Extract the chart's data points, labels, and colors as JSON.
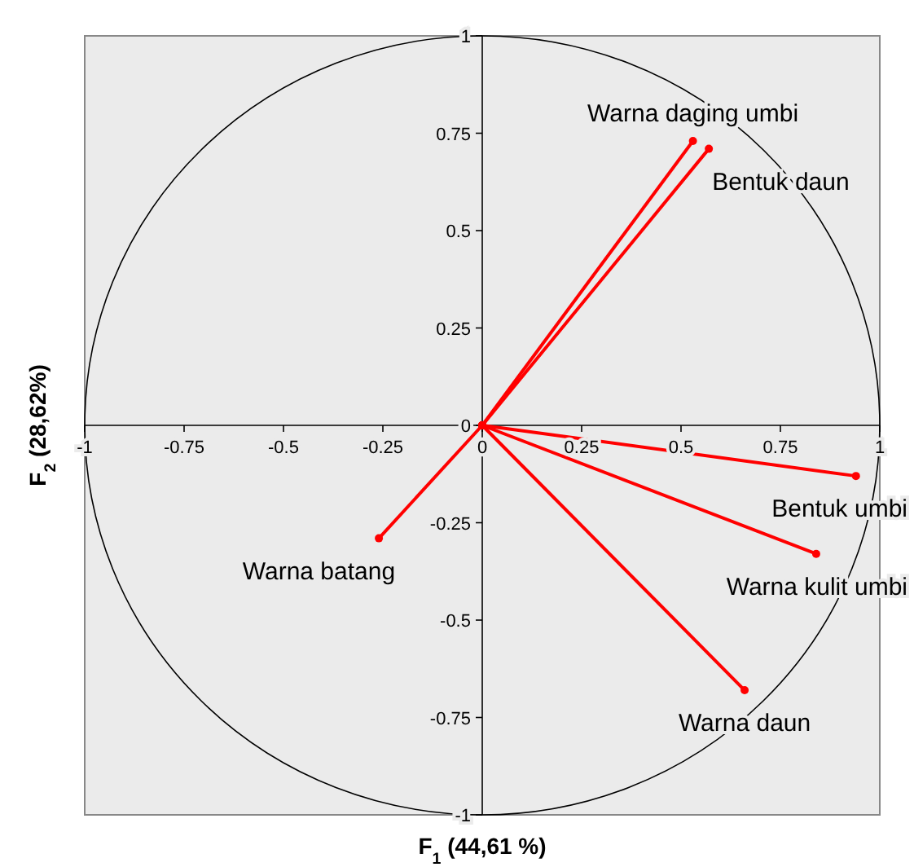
{
  "chart_data": {
    "type": "line",
    "xlabel": "F$_{1}$ (44,61 %)",
    "ylabel": "F$_{2}$ (28,62%)",
    "xlim": [
      -1,
      1
    ],
    "ylim": [
      -1,
      1
    ],
    "xticks": [
      -1,
      -0.75,
      -0.5,
      -0.25,
      0,
      0.25,
      0.5,
      0.75,
      1
    ],
    "yticks": [
      -1,
      -0.75,
      -0.5,
      -0.25,
      0,
      0.25,
      0.5,
      0.75,
      1
    ],
    "marker": "circle",
    "grid": false,
    "series": [
      {
        "name": "Warna daging umbi",
        "color": "#ff0000",
        "x": [
          0,
          0.53
        ],
        "values": [
          0,
          0.73
        ]
      },
      {
        "name": "Bentuk daun",
        "color": "#ff0000",
        "x": [
          0,
          0.57
        ],
        "values": [
          0,
          0.71
        ]
      },
      {
        "name": "Bentuk umbi",
        "color": "#ff0000",
        "x": [
          0,
          0.94
        ],
        "values": [
          0,
          -0.13
        ]
      },
      {
        "name": "Warna kulit umbi",
        "color": "#ff0000",
        "x": [
          0,
          0.84
        ],
        "values": [
          0,
          -0.33
        ]
      },
      {
        "name": "Warna daun",
        "color": "#ff0000",
        "x": [
          0,
          0.66
        ],
        "values": [
          0,
          -0.68
        ]
      },
      {
        "name": "Warna batang",
        "color": "#ff0000",
        "x": [
          0,
          -0.26
        ],
        "values": [
          0,
          -0.29
        ]
      }
    ]
  }
}
